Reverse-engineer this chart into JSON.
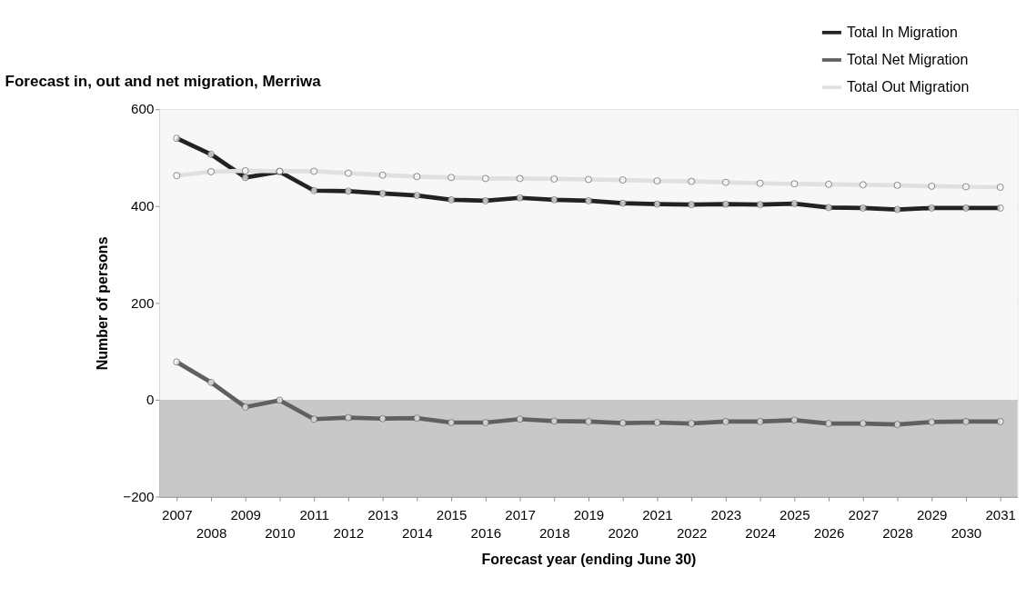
{
  "chart_data": {
    "type": "line",
    "title": "Forecast in, out and net migration, Merriwa",
    "xlabel": "Forecast year (ending June 30)",
    "ylabel": "Number of persons",
    "categories": [
      "2007",
      "2008",
      "2009",
      "2010",
      "2011",
      "2012",
      "2013",
      "2014",
      "2015",
      "2016",
      "2017",
      "2018",
      "2019",
      "2020",
      "2021",
      "2022",
      "2023",
      "2024",
      "2025",
      "2026",
      "2027",
      "2028",
      "2029",
      "2030",
      "2031"
    ],
    "series": [
      {
        "name": "Total In Migration",
        "color": "#222222",
        "values": [
          540,
          507,
          459,
          471,
          432,
          431,
          426,
          422,
          413,
          411,
          417,
          413,
          411,
          406,
          404,
          403,
          404,
          403,
          405,
          397,
          396,
          393,
          396,
          396,
          396
        ]
      },
      {
        "name": "Total Net Migration",
        "color": "#606060",
        "values": [
          78,
          36,
          -15,
          -1,
          -40,
          -37,
          -39,
          -38,
          -47,
          -47,
          -40,
          -44,
          -45,
          -48,
          -47,
          -49,
          -45,
          -45,
          -42,
          -49,
          -49,
          -51,
          -46,
          -45,
          -45
        ]
      },
      {
        "name": "Total Out Migration",
        "color": "#e0e0e0",
        "values": [
          463,
          471,
          473,
          472,
          472,
          468,
          464,
          461,
          459,
          457,
          457,
          456,
          455,
          454,
          452,
          451,
          449,
          447,
          446,
          445,
          444,
          443,
          441,
          440,
          439
        ]
      }
    ],
    "ylim": [
      -200,
      600
    ],
    "yticks": [
      -200,
      0,
      200,
      400,
      600
    ],
    "bands": [
      {
        "axis": "y",
        "from": 0,
        "to": 600,
        "color": "#f7f7f7"
      },
      {
        "axis": "y",
        "from": -200,
        "to": 0,
        "color": "#c8c8c8"
      }
    ],
    "grid": "y",
    "legend": "top right",
    "marker": "circle",
    "line_style": "solid"
  }
}
